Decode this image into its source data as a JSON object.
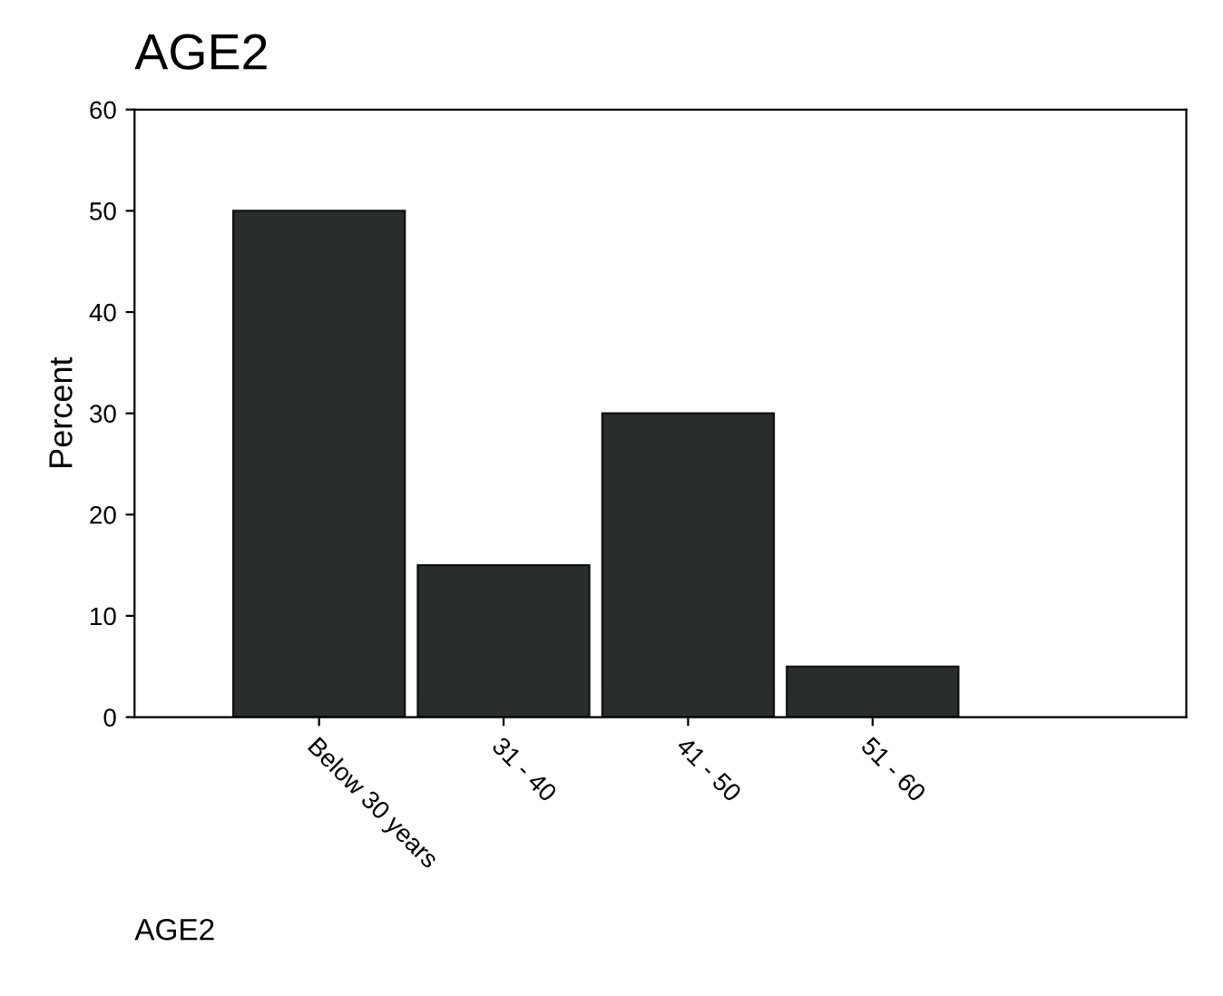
{
  "chart_data": {
    "type": "bar",
    "title": "AGE2",
    "ylabel": "Percent",
    "categories": [
      "Below 30 years",
      "31 - 40",
      "41 - 50",
      "51 - 60"
    ],
    "values": [
      50,
      15,
      30,
      5
    ],
    "color": "#2b2d2d",
    "ylim": [
      0,
      60
    ],
    "yticks": [
      0,
      10,
      20,
      30,
      40,
      50,
      60
    ],
    "grid": false,
    "legend": false,
    "annotations": [
      "AGE2"
    ]
  }
}
